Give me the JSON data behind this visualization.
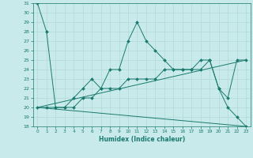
{
  "xlabel": "Humidex (Indice chaleur)",
  "xlim": [
    -0.5,
    23.5
  ],
  "ylim": [
    18,
    31
  ],
  "yticks": [
    18,
    19,
    20,
    21,
    22,
    23,
    24,
    25,
    26,
    27,
    28,
    29,
    30,
    31
  ],
  "xticks": [
    0,
    1,
    2,
    3,
    4,
    5,
    6,
    7,
    8,
    9,
    10,
    11,
    12,
    13,
    14,
    15,
    16,
    17,
    18,
    19,
    20,
    21,
    22,
    23
  ],
  "bg_color": "#c8eaea",
  "line_color": "#1a7a6e",
  "grid_color": "#b0d8d8",
  "lines": [
    {
      "x": [
        0,
        1,
        2,
        3,
        4,
        5,
        6,
        7,
        8,
        9,
        10,
        11,
        12,
        13,
        14,
        15,
        16,
        17,
        18,
        19,
        20,
        21,
        22,
        23
      ],
      "y": [
        31,
        28,
        20,
        20,
        21,
        22,
        23,
        22,
        24,
        24,
        27,
        29,
        27,
        26,
        25,
        24,
        24,
        24,
        25,
        25,
        22,
        21,
        25,
        25
      ],
      "marker": "D",
      "markersize": 2.0
    },
    {
      "x": [
        0,
        1,
        2,
        3,
        4,
        5,
        6,
        7,
        8,
        9,
        10,
        11,
        12,
        13,
        14,
        15,
        16,
        17,
        18,
        19,
        20,
        21,
        22,
        23
      ],
      "y": [
        20,
        20,
        20,
        20,
        20,
        21,
        21,
        22,
        22,
        22,
        23,
        23,
        23,
        23,
        24,
        24,
        24,
        24,
        24,
        25,
        22,
        20,
        19,
        18
      ],
      "marker": "D",
      "markersize": 2.0
    },
    {
      "x": [
        0,
        23
      ],
      "y": [
        20,
        25
      ],
      "marker": null,
      "markersize": 0
    },
    {
      "x": [
        0,
        23
      ],
      "y": [
        20,
        18
      ],
      "marker": null,
      "markersize": 0
    }
  ]
}
